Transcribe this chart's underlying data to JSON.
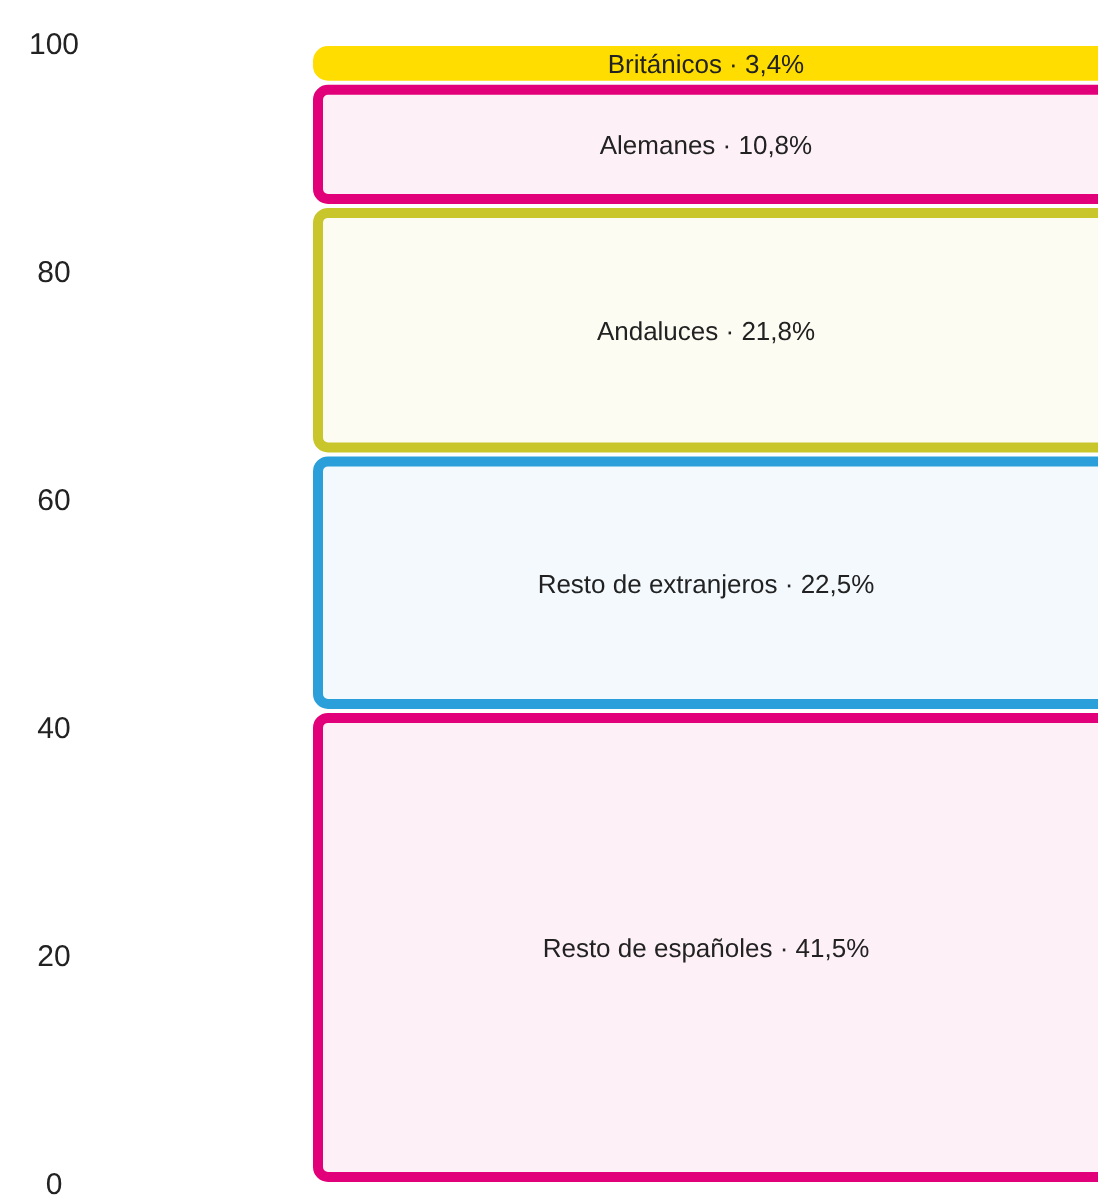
{
  "chart_data": {
    "type": "bar",
    "stacked": true,
    "categories": [
      null
    ],
    "ylim": [
      0,
      100
    ],
    "yticks": [
      0,
      20,
      40,
      60,
      80,
      100
    ],
    "series": [
      {
        "color": "#e2007a",
        "values": [
          41.5
        ],
        "value_labels": [
          "Resto de españoles · 41,5%"
        ]
      },
      {
        "color": "#2b9fd9",
        "values": [
          22.5
        ],
        "value_labels": [
          "Resto de extranjeros · 22,5%"
        ]
      },
      {
        "color": "#c9c62c",
        "values": [
          21.8
        ],
        "value_labels": [
          "Andaluces · 21,8%"
        ]
      },
      {
        "color": "#e2007a",
        "values": [
          10.8
        ],
        "value_labels": [
          "Alemanes · 10,8%"
        ]
      },
      {
        "color": "#ffdd00",
        "values": [
          3.4
        ],
        "value_labels": [
          "Británicos · 3,4%"
        ]
      }
    ]
  }
}
